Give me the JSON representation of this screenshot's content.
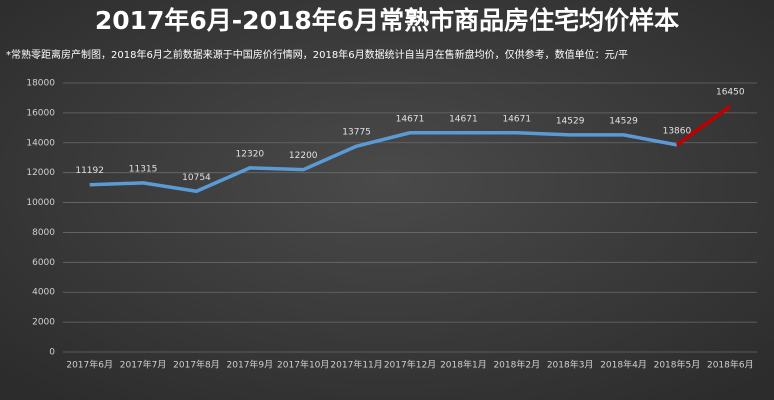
{
  "chart_data": {
    "type": "line",
    "title": "2017年6月-2018年6月常熟市商品房住宅均价样本",
    "subtitle": "*常熟零距离房产制图，2018年6月之前数据来源于中国房价行情网，2018年6月数据统计自当月在售新盘均价，仅供参考，数值单位：元/平",
    "categories": [
      "2017年6月",
      "2017年7月",
      "2017年8月",
      "2017年9月",
      "2017年10月",
      "2017年11月",
      "2017年12月",
      "2018年1月",
      "2018年2月",
      "2018年3月",
      "2018年4月",
      "2018年5月",
      "2018年6月"
    ],
    "values": [
      11192,
      11315,
      10754,
      12320,
      12200,
      13775,
      14671,
      14671,
      14671,
      14529,
      14529,
      13860,
      16450
    ],
    "color": "#5b9bd5",
    "last_segment_color": "#c00000",
    "ylim": [
      0,
      18000
    ],
    "yticks": [
      0,
      2000,
      4000,
      6000,
      8000,
      10000,
      12000,
      14000,
      16000,
      18000
    ],
    "grid": true
  }
}
